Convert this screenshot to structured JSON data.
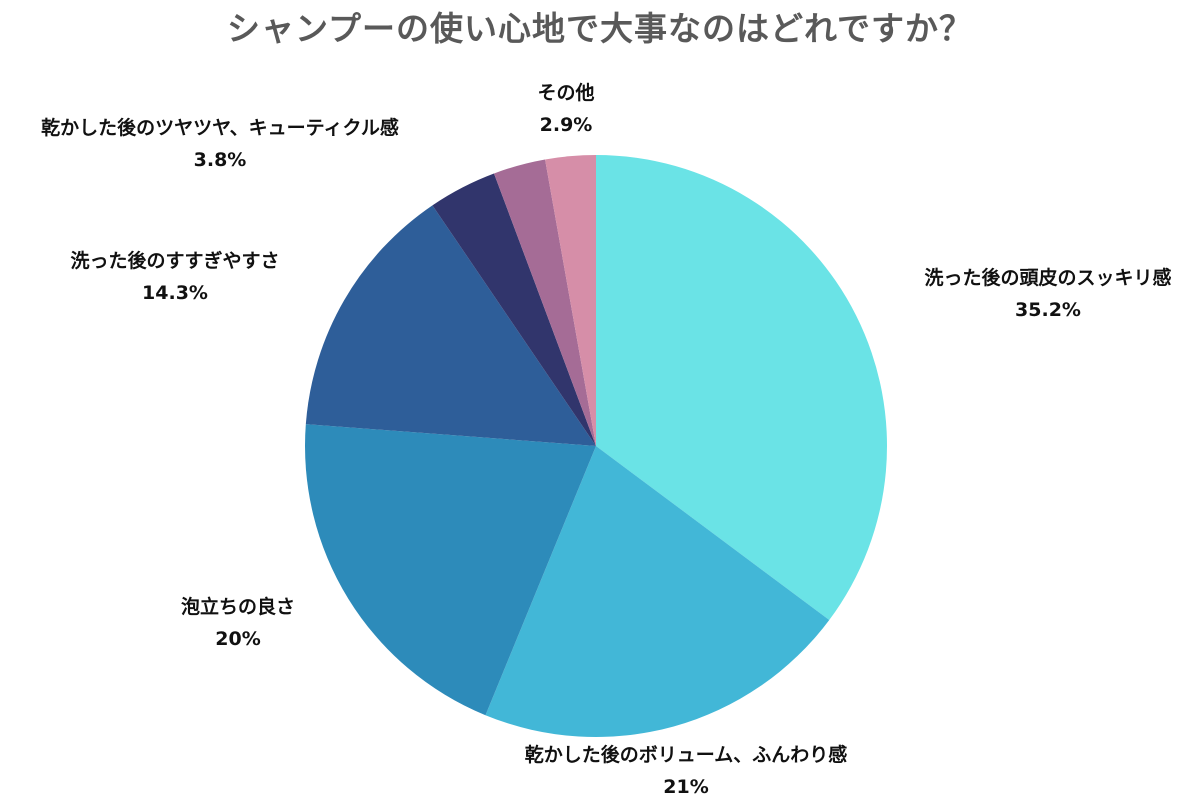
{
  "chart_data": {
    "type": "pie",
    "title": "シャンプーの使い心地で大事なのはどれですか？",
    "slices": [
      {
        "label": "洗った後の頭皮のスッキリ感",
        "value": 35.2,
        "display": "35.2%",
        "color": "#6ae3e6"
      },
      {
        "label": "乾かした後のボリューム、ふんわり感",
        "value": 21,
        "display": "21%",
        "color": "#42b7d7"
      },
      {
        "label": "泡立ちの良さ",
        "value": 20,
        "display": "20%",
        "color": "#2d8bba"
      },
      {
        "label": "洗った後のすすぎやすさ",
        "value": 14.3,
        "display": "14.3%",
        "color": "#2e5e99"
      },
      {
        "label": "乾かした後のツヤツヤ、キューティクル感",
        "value": 3.8,
        "display": "3.8%",
        "color": "#31356c"
      },
      {
        "label": "その他",
        "value": 2.9,
        "display": "2.9%",
        "color": "#a56c96"
      }
    ],
    "remainder_color": "#d68ea8",
    "start_angle": "12 o'clock",
    "direction": "clockwise",
    "legend": "none"
  }
}
